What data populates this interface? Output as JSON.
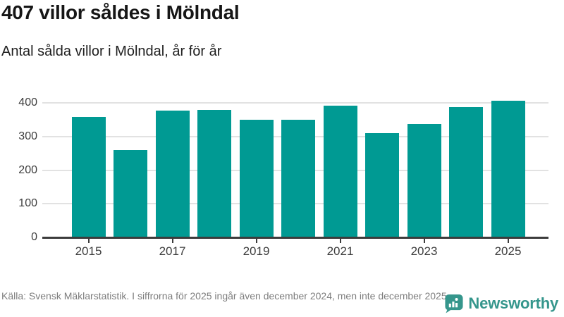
{
  "header": {
    "title": "407 villor såldes i Mölndal",
    "subtitle": "Antal sålda villor i Mölndal, år för år"
  },
  "chart_data": {
    "type": "bar",
    "categories": [
      "2015",
      "2016",
      "2017",
      "2018",
      "2019",
      "2020",
      "2021",
      "2022",
      "2023",
      "2024",
      "2025"
    ],
    "values": [
      358,
      260,
      377,
      379,
      350,
      350,
      391,
      310,
      337,
      388,
      407
    ],
    "title": "407 villor såldes i Mölndal",
    "xlabel": "",
    "ylabel": "",
    "ylim": [
      0,
      420
    ],
    "yticks": [
      0,
      100,
      200,
      300,
      400
    ],
    "xtick_labels": [
      "2015",
      "2017",
      "2019",
      "2021",
      "2023",
      "2025"
    ],
    "bar_color": "#009a93",
    "grid": true,
    "legend": "none"
  },
  "footer": {
    "source_text": "Källa: Svensk Mäklarstatistik. I siffrorna för 2025 ingår även december 2024, men inte december 2025.",
    "brand": {
      "name": "Newsworthy",
      "color": "#35968c",
      "icon": "bar-chart-speech-bubble"
    }
  }
}
